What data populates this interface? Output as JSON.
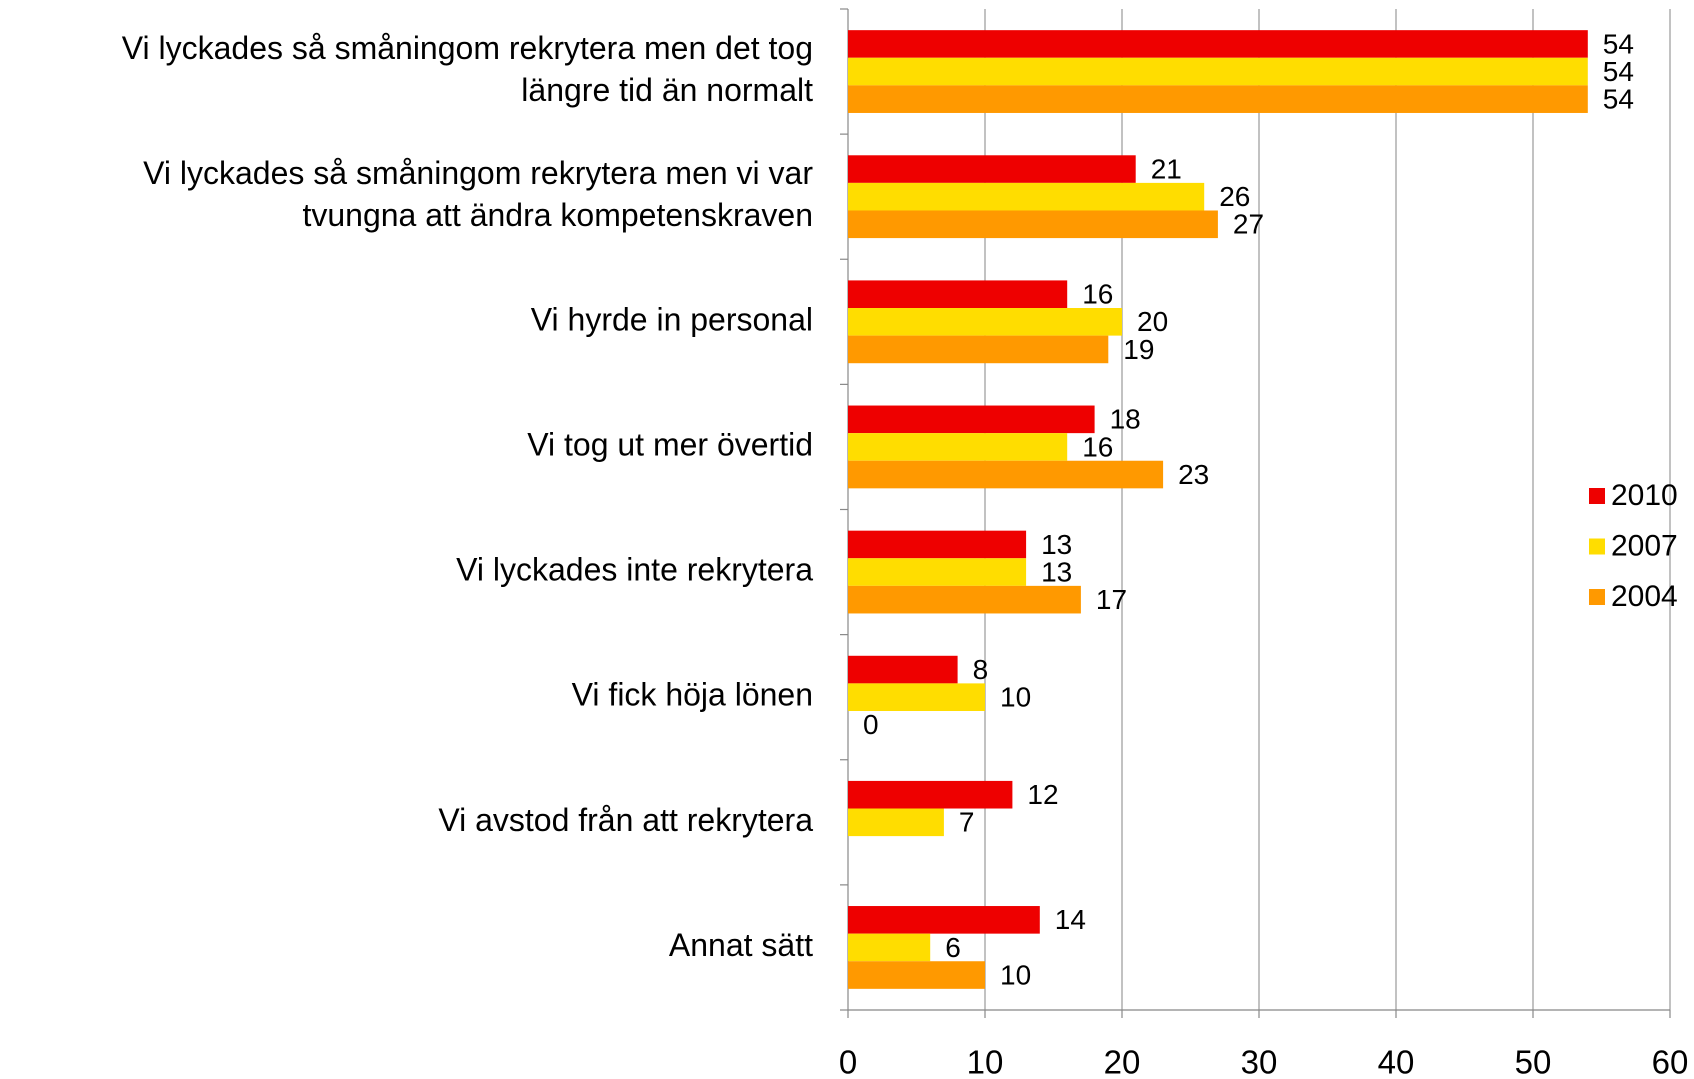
{
  "chart_data": {
    "type": "hbar",
    "categories": [
      [
        "Vi lyckades så småningom rekrytera men det tog",
        "längre tid än normalt"
      ],
      [
        "Vi lyckades så småningom rekrytera men vi var",
        "tvungna att ändra kompetenskraven"
      ],
      [
        "Vi hyrde in personal"
      ],
      [
        "Vi tog ut mer övertid"
      ],
      [
        "Vi lyckades inte rekrytera"
      ],
      [
        "Vi fick höja lönen"
      ],
      [
        "Vi avstod från att rekrytera"
      ],
      [
        "Annat sätt"
      ]
    ],
    "series": [
      {
        "name": "2010",
        "color": "#ee0000",
        "values": [
          54,
          21,
          16,
          18,
          13,
          8,
          12,
          14
        ]
      },
      {
        "name": "2007",
        "color": "#ffdd00",
        "values": [
          54,
          26,
          20,
          16,
          13,
          10,
          7,
          6
        ]
      },
      {
        "name": "2004",
        "color": "#ff9900",
        "values": [
          54,
          27,
          19,
          23,
          17,
          0,
          null,
          10
        ]
      }
    ],
    "xlim": [
      0,
      60
    ],
    "xticks": [
      0,
      10,
      20,
      30,
      40,
      50,
      60
    ],
    "grid": true,
    "legend": "right"
  }
}
